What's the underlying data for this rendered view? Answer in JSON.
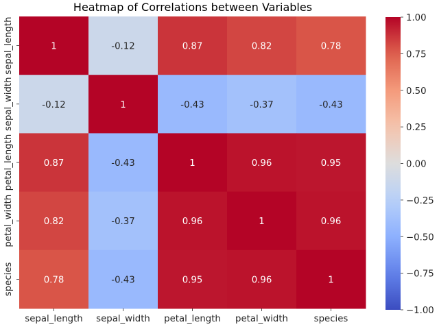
{
  "chart_data": {
    "type": "heatmap",
    "title": "Heatmap of Correlations between Variables",
    "x_labels": [
      "sepal_length",
      "sepal_width",
      "petal_length",
      "petal_width",
      "species"
    ],
    "y_labels": [
      "sepal_length",
      "sepal_width",
      "petal_length",
      "petal_width",
      "species"
    ],
    "values": [
      [
        1,
        -0.12,
        0.87,
        0.82,
        0.78
      ],
      [
        -0.12,
        1,
        -0.43,
        -0.37,
        -0.43
      ],
      [
        0.87,
        -0.43,
        1,
        0.96,
        0.95
      ],
      [
        0.82,
        -0.37,
        0.96,
        1,
        0.96
      ],
      [
        0.78,
        -0.43,
        0.95,
        0.96,
        1
      ]
    ],
    "annotations": [
      [
        "1",
        "-0.12",
        "0.87",
        "0.82",
        "0.78"
      ],
      [
        "-0.12",
        "1",
        "-0.43",
        "-0.37",
        "-0.43"
      ],
      [
        "0.87",
        "-0.43",
        "1",
        "0.96",
        "0.95"
      ],
      [
        "0.82",
        "-0.37",
        "0.96",
        "1",
        "0.96"
      ],
      [
        "0.78",
        "-0.43",
        "0.95",
        "0.96",
        "1"
      ]
    ],
    "colormap": "coolwarm",
    "vmin": -1.0,
    "vmax": 1.0,
    "colorbar_ticks": [
      "1.00",
      "0.75",
      "0.50",
      "0.25",
      "0.00",
      "−0.25",
      "−0.50",
      "−0.75",
      "−1.00"
    ],
    "colorbar_values": [
      1.0,
      0.75,
      0.5,
      0.25,
      0.0,
      -0.25,
      -0.5,
      -0.75,
      -1.0
    ]
  }
}
